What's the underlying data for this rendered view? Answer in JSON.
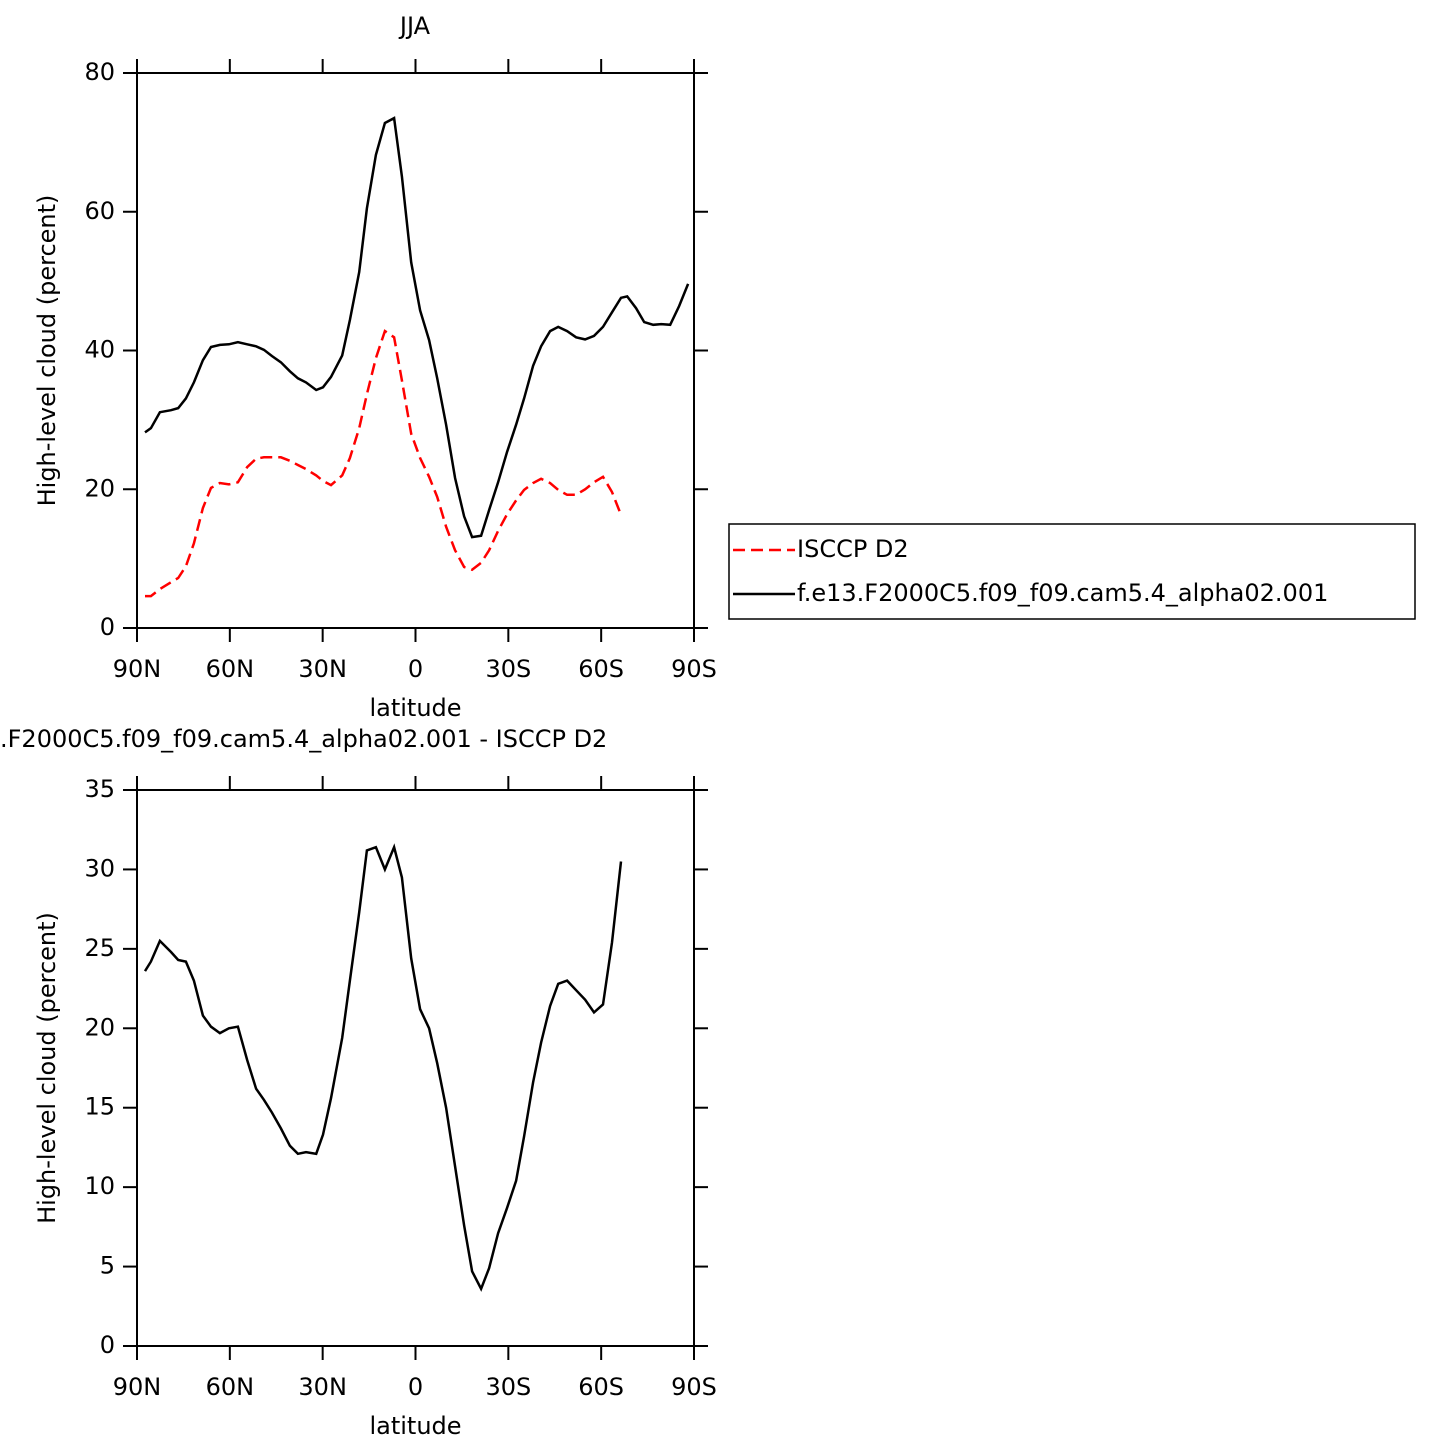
{
  "chart_data": [
    {
      "type": "line",
      "title": "JJA",
      "xlabel": "latitude",
      "ylabel": "High-level cloud (percent)",
      "x": [
        87.4,
        85.5,
        82.6,
        79.0,
        76.7,
        74.2,
        71.6,
        68.7,
        66.1,
        63.2,
        60.3,
        57.4,
        54.4,
        51.5,
        49.0,
        46.4,
        43.5,
        40.6,
        38.0,
        35.4,
        32.1,
        29.9,
        27.3,
        23.7,
        21.2,
        18.2,
        15.7,
        12.8,
        9.9,
        6.9,
        4.4,
        1.4,
        -1.5,
        -4.4,
        -7.0,
        -9.9,
        -12.8,
        -15.7,
        -18.3,
        -21.2,
        -23.8,
        -26.7,
        -29.6,
        -32.5,
        -35.1,
        -38.0,
        -40.6,
        -43.5,
        -46.1,
        -49.0,
        -51.9,
        -54.8,
        -57.7,
        -60.6,
        -63.5,
        -66.4,
        -68.4,
        -71.3,
        -73.9,
        -76.8,
        -79.4,
        -82.3,
        -85.2,
        -88.1
      ],
      "series": [
        {
          "name": "ISCCP D2",
          "color": "#ff0000",
          "dash": "dashed",
          "values": [
            4.6,
            4.6,
            5.6,
            6.6,
            7.2,
            8.9,
            12.2,
            17.3,
            20.2,
            20.9,
            20.7,
            21.0,
            23.2,
            24.4,
            24.6,
            24.6,
            24.6,
            24.1,
            23.5,
            22.9,
            22.0,
            21.2,
            20.6,
            22.0,
            24.5,
            28.8,
            33.7,
            38.9,
            42.8,
            41.9,
            35.7,
            28.0,
            24.5,
            21.8,
            18.9,
            14.6,
            11.2,
            8.8,
            8.4,
            9.4,
            11.2,
            14.0,
            16.4,
            18.4,
            19.9,
            20.9,
            21.5,
            20.9,
            19.9,
            19.2,
            19.2,
            20.0,
            21.0,
            21.8,
            19.6,
            16.3,
            null,
            null,
            null,
            null,
            null,
            null,
            null,
            null
          ]
        },
        {
          "name": "f.e13.F2000C5.f09_f09.cam5.4_alpha02.001",
          "color": "#000000",
          "dash": "solid",
          "values": [
            28.2,
            28.8,
            31.1,
            31.4,
            31.7,
            33.1,
            35.4,
            38.6,
            40.5,
            40.8,
            40.9,
            41.2,
            40.9,
            40.6,
            40.1,
            39.2,
            38.3,
            37.0,
            36.0,
            35.4,
            34.3,
            34.7,
            36.2,
            39.3,
            44.4,
            51.3,
            60.5,
            68.2,
            72.8,
            73.5,
            65.1,
            52.7,
            45.8,
            41.5,
            36.0,
            29.3,
            21.6,
            16.1,
            13.1,
            13.3,
            17.0,
            21.0,
            25.4,
            29.3,
            33.1,
            37.8,
            40.6,
            42.8,
            43.4,
            42.8,
            41.9,
            41.6,
            42.1,
            43.4,
            45.5,
            47.6,
            47.8,
            46.1,
            44.1,
            43.7,
            43.8,
            43.7,
            46.4,
            49.6
          ]
        }
      ],
      "xlim": [
        90,
        -90
      ],
      "xticks": [
        {
          "value": 90,
          "label": "90N"
        },
        {
          "value": 60,
          "label": "60N"
        },
        {
          "value": 30,
          "label": "30N"
        },
        0,
        {
          "value": -30,
          "label": "30S"
        },
        {
          "value": -60,
          "label": "60S"
        },
        {
          "value": -90,
          "label": "90S"
        }
      ],
      "ylim": [
        0,
        80
      ],
      "yticks": [
        0,
        20,
        40,
        60,
        80
      ],
      "legend": "right"
    },
    {
      "type": "line",
      "title": ".F2000C5.f09_f09.cam5.4_alpha02.001 - ISCCP D2",
      "xlabel": "latitude",
      "ylabel": "High-level cloud (percent)",
      "x": [
        87.4,
        85.5,
        82.6,
        79.0,
        76.7,
        74.2,
        71.6,
        68.7,
        66.1,
        63.2,
        60.3,
        57.4,
        54.4,
        51.5,
        49.0,
        46.4,
        43.5,
        40.6,
        38.0,
        35.4,
        32.1,
        29.9,
        27.3,
        23.7,
        21.2,
        18.2,
        15.7,
        12.8,
        9.9,
        6.9,
        4.4,
        1.4,
        -1.5,
        -4.4,
        -7.0,
        -9.9,
        -12.8,
        -15.7,
        -18.3,
        -21.2,
        -23.8,
        -26.7,
        -29.6,
        -32.5,
        -35.1,
        -38.0,
        -40.6,
        -43.5,
        -46.1,
        -49.0,
        -51.9,
        -54.8,
        -57.7,
        -60.6,
        -63.5,
        -66.4
      ],
      "series": [
        {
          "color": "#000000",
          "dash": "solid",
          "values": [
            23.6,
            24.2,
            25.5,
            24.8,
            24.3,
            24.2,
            23.0,
            20.8,
            20.1,
            19.7,
            20.0,
            20.1,
            18.0,
            16.2,
            15.5,
            14.7,
            13.7,
            12.6,
            12.1,
            12.2,
            12.1,
            13.3,
            15.6,
            19.4,
            23.0,
            27.3,
            31.2,
            31.4,
            30.0,
            31.4,
            29.5,
            24.4,
            21.2,
            20.0,
            17.8,
            15.0,
            11.3,
            7.6,
            4.7,
            3.6,
            4.9,
            7.1,
            8.7,
            10.4,
            13.2,
            16.6,
            19.1,
            21.4,
            22.8,
            23.0,
            22.4,
            21.8,
            21.0,
            21.5,
            25.4,
            30.5
          ]
        }
      ],
      "xlim": [
        90,
        -90
      ],
      "xticks": [
        {
          "value": 90,
          "label": "90N"
        },
        {
          "value": 60,
          "label": "60N"
        },
        {
          "value": 30,
          "label": "30N"
        },
        0,
        {
          "value": -30,
          "label": "30S"
        },
        {
          "value": -60,
          "label": "60S"
        },
        {
          "value": -90,
          "label": "90S"
        }
      ],
      "ylim": [
        0,
        35
      ],
      "yticks": [
        0,
        5,
        10,
        15,
        20,
        25,
        30,
        35
      ]
    }
  ]
}
